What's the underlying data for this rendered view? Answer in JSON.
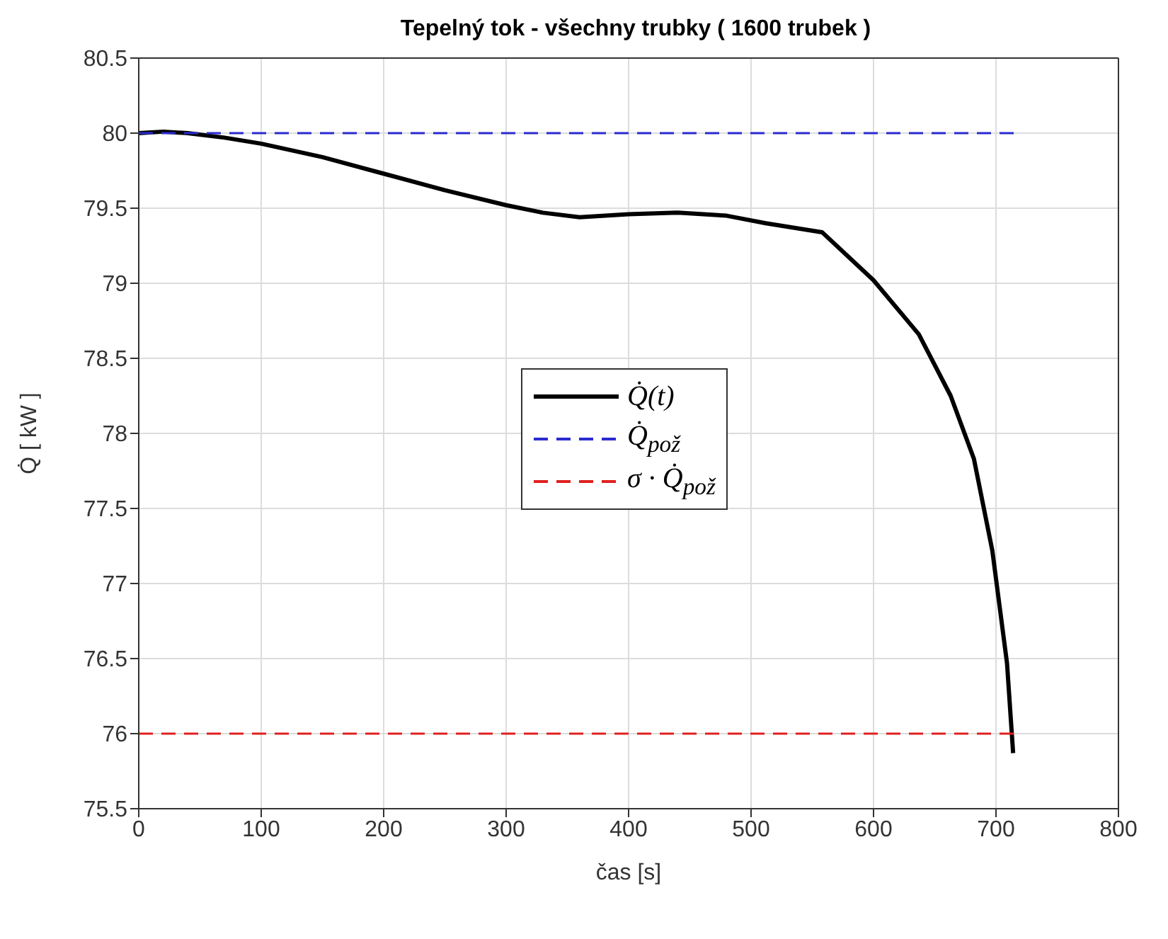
{
  "chart_data": {
    "type": "line",
    "title": "Tepelný tok - všechny trubky ( 1600 trubek )",
    "xlabel": "čas    [s]",
    "ylabel": "Q̇ [ kW ]",
    "xlim": [
      0,
      800
    ],
    "xticks": [
      0,
      100,
      200,
      300,
      400,
      500,
      600,
      700,
      800
    ],
    "ylim": [
      75.5,
      80.5
    ],
    "yticks": [
      75.5,
      76,
      76.5,
      77,
      77.5,
      78,
      78.5,
      79,
      79.5,
      80,
      80.5
    ],
    "grid": true,
    "legend": "center",
    "marker": "none",
    "series": [
      {
        "name": "Q̇(t)",
        "color": "#000000",
        "line_style": "solid",
        "x": [
          0,
          20,
          40,
          70,
          100,
          150,
          200,
          250,
          300,
          330,
          360,
          400,
          440,
          480,
          512,
          558,
          600,
          637,
          663,
          682,
          697,
          709,
          714
        ],
        "values": [
          80,
          80.01,
          80,
          79.97,
          79.93,
          79.84,
          79.73,
          79.62,
          79.52,
          79.47,
          79.44,
          79.46,
          79.47,
          79.45,
          79.4,
          79.34,
          79.02,
          78.66,
          78.25,
          77.83,
          77.22,
          76.47,
          75.87
        ]
      },
      {
        "name": "Q̇$_{pož}$",
        "color": "#2a2ad0",
        "line_style": "dashed",
        "x": [
          0,
          716
        ],
        "values": [
          80,
          80
        ]
      },
      {
        "name": "σ · Q̇$_{pož}$",
        "color": "#e02020",
        "line_style": "dashed",
        "x": [
          0,
          716
        ],
        "values": [
          76,
          76
        ]
      }
    ]
  }
}
